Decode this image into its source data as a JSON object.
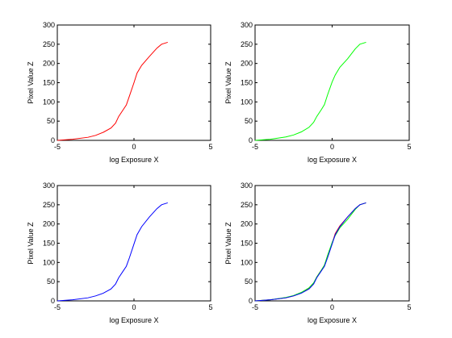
{
  "chart_data": [
    {
      "type": "line",
      "xlabel": "log Exposure X",
      "ylabel": "Pixel Value Z",
      "xlim": [
        -5,
        5
      ],
      "ylim": [
        0,
        300
      ],
      "xticks": [
        "-5",
        "0",
        "5"
      ],
      "yticks": [
        "0",
        "50",
        "100",
        "150",
        "200",
        "250",
        "300"
      ],
      "grid": false,
      "series": [
        {
          "color": "#ff0000",
          "x": [
            -5,
            -4,
            -3,
            -2.5,
            -2,
            -1.5,
            -1.2,
            -1,
            -0.7,
            -0.5,
            -0.3,
            0,
            0.2,
            0.5,
            1,
            1.5,
            1.8,
            2.2
          ],
          "y": [
            0,
            3,
            8,
            13,
            21,
            32,
            45,
            62,
            80,
            92,
            115,
            150,
            175,
            195,
            218,
            240,
            250,
            255
          ]
        }
      ]
    },
    {
      "type": "line",
      "xlabel": "log Exposure X",
      "ylabel": "Pixel Value Z",
      "xlim": [
        -5,
        5
      ],
      "ylim": [
        0,
        300
      ],
      "xticks": [
        "-5",
        "0",
        "5"
      ],
      "yticks": [
        "0",
        "50",
        "100",
        "150",
        "200",
        "250",
        "300"
      ],
      "grid": false,
      "series": [
        {
          "color": "#00ff00",
          "x": [
            -5,
            -4,
            -3,
            -2.5,
            -2,
            -1.5,
            -1.2,
            -1,
            -0.7,
            -0.5,
            -0.3,
            0,
            0.2,
            0.5,
            1,
            1.5,
            1.8,
            2.2
          ],
          "y": [
            0,
            3,
            9,
            14,
            22,
            34,
            47,
            62,
            80,
            93,
            118,
            152,
            170,
            190,
            212,
            238,
            250,
            255
          ]
        }
      ]
    },
    {
      "type": "line",
      "xlabel": "log Exposure X",
      "ylabel": "Pixel Value Z",
      "xlim": [
        -5,
        5
      ],
      "ylim": [
        0,
        300
      ],
      "xticks": [
        "-5",
        "0",
        "5"
      ],
      "yticks": [
        "0",
        "50",
        "100",
        "150",
        "200",
        "250",
        "300"
      ],
      "grid": false,
      "series": [
        {
          "color": "#0000ff",
          "x": [
            -5,
            -4,
            -3,
            -2.5,
            -2,
            -1.5,
            -1.2,
            -1,
            -0.7,
            -0.5,
            -0.3,
            0,
            0.2,
            0.5,
            1,
            1.5,
            1.8,
            2.2
          ],
          "y": [
            0,
            3,
            8,
            13,
            20,
            31,
            44,
            60,
            78,
            90,
            112,
            148,
            172,
            193,
            218,
            240,
            250,
            255
          ]
        }
      ]
    },
    {
      "type": "line",
      "xlabel": "log Exposure X",
      "ylabel": "Pixel Value Z",
      "xlim": [
        -5,
        5
      ],
      "ylim": [
        0,
        300
      ],
      "xticks": [
        "-5",
        "0",
        "5"
      ],
      "yticks": [
        "0",
        "50",
        "100",
        "150",
        "200",
        "250",
        "300"
      ],
      "grid": false,
      "series": [
        {
          "color": "#ff0000",
          "x": [
            -5,
            -4,
            -3,
            -2.5,
            -2,
            -1.5,
            -1.2,
            -1,
            -0.7,
            -0.5,
            -0.3,
            0,
            0.2,
            0.5,
            1,
            1.5,
            1.8,
            2.2
          ],
          "y": [
            0,
            3,
            8,
            13,
            21,
            32,
            45,
            62,
            80,
            92,
            115,
            150,
            175,
            195,
            218,
            240,
            250,
            255
          ]
        },
        {
          "color": "#00ff00",
          "x": [
            -5,
            -4,
            -3,
            -2.5,
            -2,
            -1.5,
            -1.2,
            -1,
            -0.7,
            -0.5,
            -0.3,
            0,
            0.2,
            0.5,
            1,
            1.5,
            1.8,
            2.2
          ],
          "y": [
            0,
            3,
            9,
            14,
            22,
            34,
            47,
            62,
            80,
            93,
            118,
            152,
            170,
            190,
            212,
            238,
            250,
            255
          ]
        },
        {
          "color": "#0000ff",
          "x": [
            -5,
            -4,
            -3,
            -2.5,
            -2,
            -1.5,
            -1.2,
            -1,
            -0.7,
            -0.5,
            -0.3,
            0,
            0.2,
            0.5,
            1,
            1.5,
            1.8,
            2.2
          ],
          "y": [
            0,
            3,
            8,
            13,
            20,
            31,
            44,
            60,
            78,
            90,
            112,
            148,
            172,
            193,
            218,
            240,
            250,
            255
          ]
        }
      ]
    }
  ]
}
